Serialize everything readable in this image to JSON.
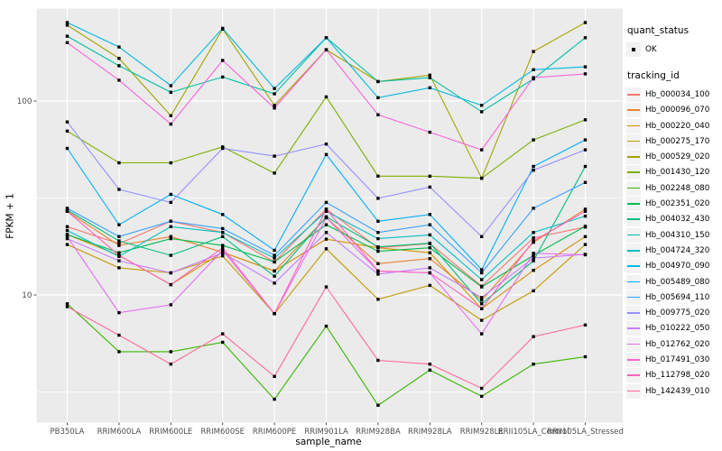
{
  "figure": {
    "background": "#FFFFFF",
    "panel_background": "#EBEBEB",
    "grid_color": "#FFFFFF",
    "marker_color": "#000000",
    "tick_label_color": "#4D4D4D",
    "legend_key_background": "#F2F2F2"
  },
  "legend": {
    "quant_title": "quant_status",
    "quant_items": [
      "OK"
    ],
    "tracking_title": "tracking_id"
  },
  "chart_data": {
    "type": "line",
    "title": "",
    "xlabel": "sample_name",
    "ylabel": "FPKM + 1",
    "y_scale": "log10",
    "ylim": [
      2.2,
      300
    ],
    "y_ticks": [
      100,
      10
    ],
    "y_tick_labels": [
      "100",
      "10"
    ],
    "y_minor_gridlines": [
      31.62,
      3.162
    ],
    "grid": true,
    "legend_position": "right",
    "marker": "black-square",
    "categories": [
      "PB350LA",
      "RRIM600LA",
      "RRIM600LE",
      "RRIM600SE",
      "RRIM600PE",
      "RRIM901LA",
      "RRIM928BA",
      "RRIM928LA",
      "RRIM928LE",
      "RRII105LA_Control",
      "RRII105LA_Stressed"
    ],
    "series": [
      {
        "name": "Hb_000034_100",
        "color": "#F8766D",
        "values": [
          22.5,
          18.4,
          24,
          21,
          14.8,
          27.7,
          17.5,
          18.4,
          11.1,
          19.7,
          22.4
        ]
      },
      {
        "name": "Hb_000096_070",
        "color": "#EA8331",
        "values": [
          27,
          18,
          20,
          16.6,
          13.3,
          25,
          14.5,
          15.4,
          9.4,
          18.7,
          27.7
        ]
      },
      {
        "name": "Hb_000220_040",
        "color": "#D89000",
        "values": [
          20.5,
          16,
          11.3,
          16.6,
          13.3,
          19.4,
          17.5,
          16.5,
          8.5,
          13.4,
          20
        ]
      },
      {
        "name": "Hb_000275_170",
        "color": "#C09B00",
        "values": [
          18.2,
          13.8,
          13,
          15.9,
          8,
          17.3,
          9.5,
          11.2,
          7.4,
          10.5,
          18.2
        ]
      },
      {
        "name": "Hb_000529_020",
        "color": "#A3A500",
        "values": [
          246,
          166,
          84,
          235,
          95,
          184,
          126,
          136,
          40,
          180,
          254
        ]
      },
      {
        "name": "Hb_001430_120",
        "color": "#7CAE00",
        "values": [
          70,
          48,
          48,
          58,
          42.5,
          105,
          41,
          41,
          40,
          63,
          80
        ]
      },
      {
        "name": "Hb_002248_080",
        "color": "#39B600",
        "values": [
          9,
          5.1,
          5.1,
          5.7,
          2.9,
          6.9,
          2.7,
          4.1,
          3,
          4.4,
          4.8
        ]
      },
      {
        "name": "Hb_002351_020",
        "color": "#00BB4E",
        "values": [
          20.5,
          16.5,
          19.5,
          18,
          14.8,
          23,
          16.8,
          17.5,
          11,
          16,
          22.6
        ]
      },
      {
        "name": "Hb_004032_430",
        "color": "#00BF7D",
        "values": [
          27.4,
          19,
          16,
          20,
          12.5,
          25.3,
          17.7,
          18.5,
          9,
          15,
          46
        ]
      },
      {
        "name": "Hb_004310_150",
        "color": "#00C1A3",
        "values": [
          216,
          152,
          111,
          133,
          109,
          212,
          126,
          132,
          88,
          130,
          212
        ]
      },
      {
        "name": "Hb_004724_320",
        "color": "#00BFC4",
        "values": [
          21.5,
          15.8,
          22.5,
          21,
          15.5,
          27,
          19.5,
          20.4,
          12,
          21,
          25.5
        ]
      },
      {
        "name": "Hb_004970_090",
        "color": "#00BAE0",
        "values": [
          254,
          190,
          120,
          237,
          116,
          212,
          104,
          117,
          95,
          145,
          150
        ]
      },
      {
        "name": "Hb_005489_080",
        "color": "#00B0F6",
        "values": [
          57,
          23,
          33,
          26,
          17,
          53,
          24,
          26,
          13.5,
          46,
          63
        ]
      },
      {
        "name": "Hb_005694_110",
        "color": "#35A2FF",
        "values": [
          28,
          20,
          24,
          22,
          16,
          30,
          21,
          23,
          13,
          28,
          38
        ]
      },
      {
        "name": "Hb_009775_020",
        "color": "#9590FF",
        "values": [
          78,
          35,
          30,
          57,
          52,
          60,
          31.5,
          36,
          20,
          44,
          56
        ]
      },
      {
        "name": "Hb_010222_050",
        "color": "#C77CFF",
        "values": [
          19.5,
          15,
          13,
          16.5,
          11.5,
          21,
          12.8,
          13.8,
          9.7,
          15.5,
          16.2
        ]
      },
      {
        "name": "Hb_012762_020",
        "color": "#E76BF3",
        "values": [
          20,
          8.1,
          8.9,
          17,
          8,
          25,
          13.3,
          13,
          6.3,
          16.4,
          16.1
        ]
      },
      {
        "name": "Hb_017491_030",
        "color": "#FA62DB",
        "values": [
          200,
          128,
          76,
          162,
          92,
          184,
          85,
          69,
          56,
          132,
          138
        ]
      },
      {
        "name": "Hb_112798_020",
        "color": "#FF62BC",
        "values": [
          27,
          16,
          11.3,
          17.5,
          8,
          27.7,
          13.3,
          13,
          8.5,
          19,
          27
        ]
      },
      {
        "name": "Hb_142439_010",
        "color": "#FF6A98",
        "values": [
          8.7,
          6.2,
          4.4,
          6.3,
          3.8,
          11,
          4.6,
          4.4,
          3.3,
          6.1,
          7
        ]
      }
    ]
  }
}
